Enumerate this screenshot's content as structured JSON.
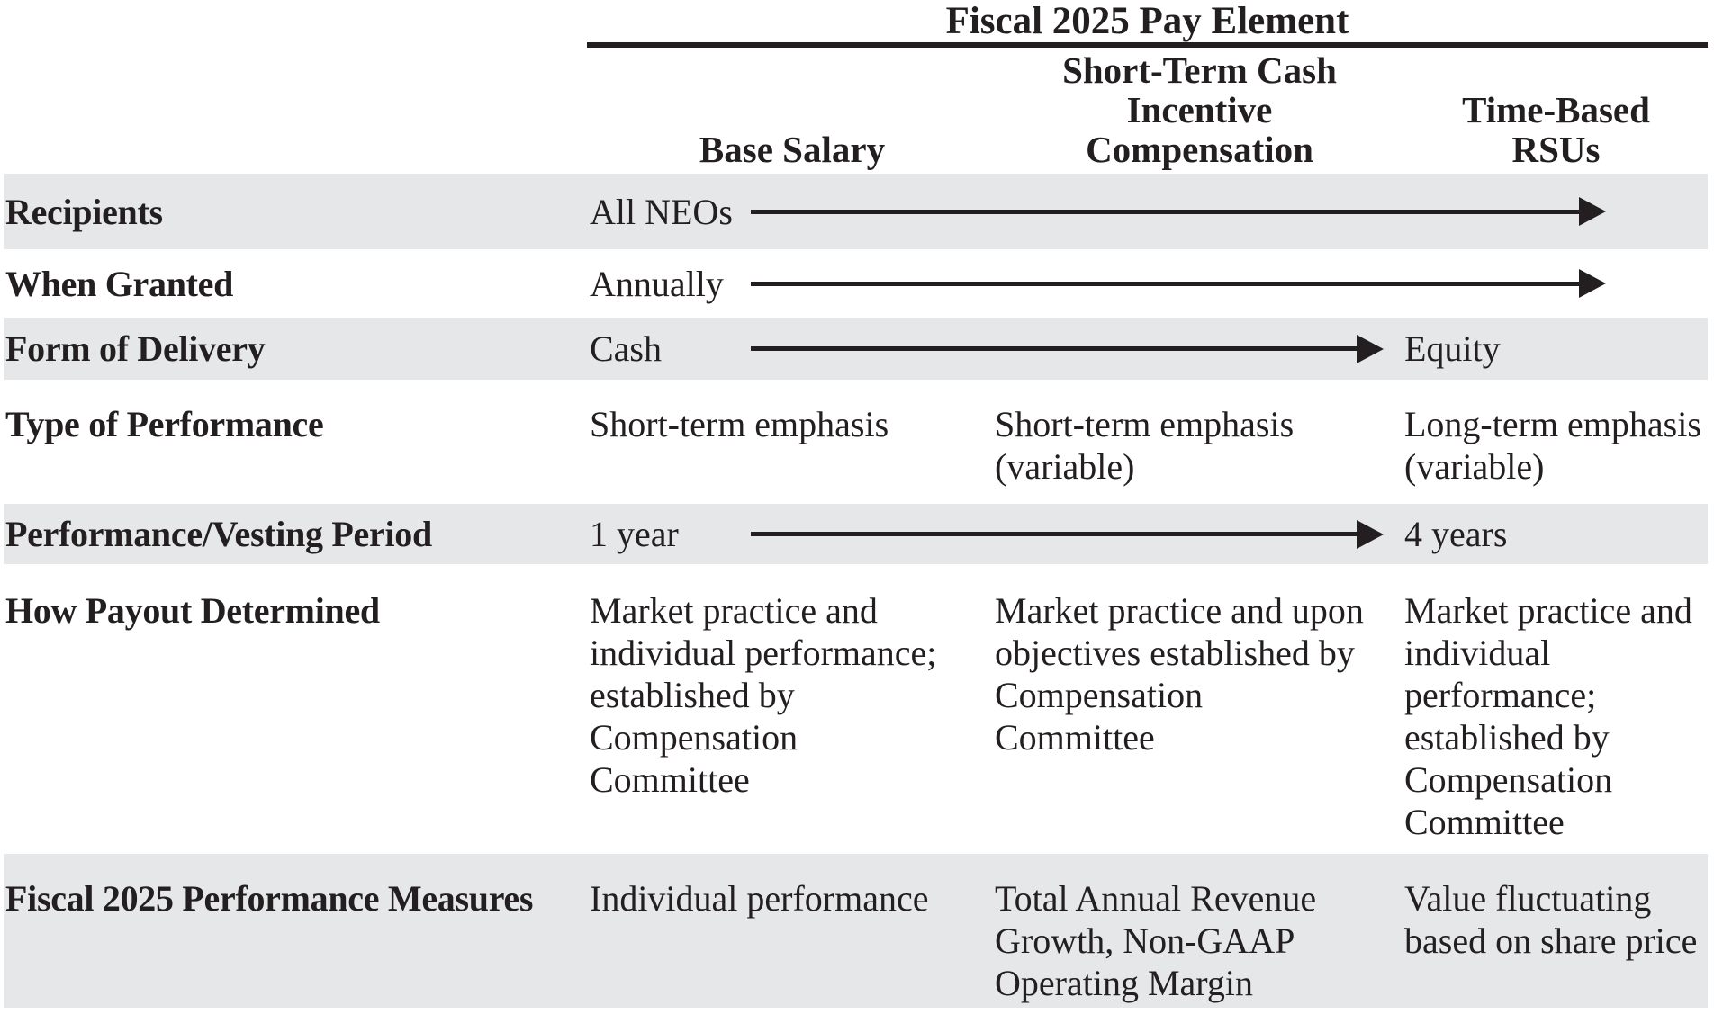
{
  "table": {
    "title": "Fiscal 2025 Pay Element",
    "col_headers": [
      "Base Salary",
      "Short-Term Cash\nIncentive\nCompensation",
      "Time-Based\nRSUs"
    ],
    "colors": {
      "row_shade": "#e6e7e8",
      "text": "#231f20",
      "arrow": "#231f20"
    },
    "rows": [
      {
        "label": "Recipients",
        "c1": "All NEOs",
        "c2": "",
        "c3": "",
        "arrow": "spans columns through Time-Based RSUs"
      },
      {
        "label": "When Granted",
        "c1": "Annually",
        "c2": "",
        "c3": "",
        "arrow": "spans columns through Time-Based RSUs"
      },
      {
        "label": "Form of Delivery",
        "c1": "Cash",
        "c2": "",
        "c3": "Equity",
        "arrow": "spans to Time-Based RSUs column"
      },
      {
        "label": "Type of Performance",
        "c1": "Short-term emphasis",
        "c2": "Short-term emphasis\n(variable)",
        "c3": "Long-term emphasis\n(variable)",
        "arrow": ""
      },
      {
        "label": "Performance/Vesting Period",
        "c1": "1 year",
        "c2": "",
        "c3": "4 years",
        "arrow": "spans to Time-Based RSUs column"
      },
      {
        "label": "How Payout Determined",
        "c1": "Market practice and\nindividual performance;\nestablished by\nCompensation\nCommittee",
        "c2": "Market practice and upon\nobjectives established by\nCompensation\nCommittee",
        "c3": "Market practice and\nindividual\nperformance;\nestablished by\nCompensation\nCommittee",
        "arrow": ""
      },
      {
        "label": "Fiscal 2025 Performance Measures",
        "c1": "Individual performance",
        "c2": "Total Annual Revenue\nGrowth, Non-GAAP\nOperating Margin",
        "c3": "Value fluctuating\nbased on share price",
        "arrow": ""
      }
    ]
  }
}
